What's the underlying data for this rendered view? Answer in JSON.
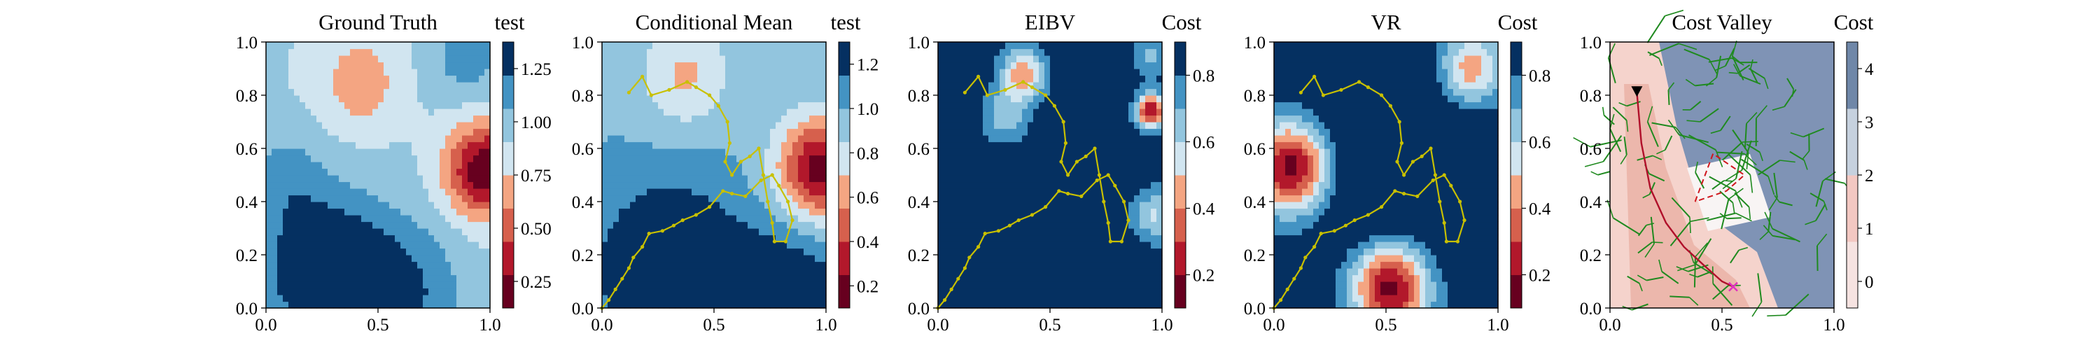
{
  "figure": {
    "panels": [
      {
        "title": "Ground Truth",
        "cbar_label": "test",
        "cbar_ticks": [
          "0.25",
          "0.50",
          "0.75",
          "1.00",
          "1.25"
        ],
        "cbar_levels": 8
      },
      {
        "title": "Conditional Mean",
        "cbar_label": "test",
        "cbar_ticks": [
          "0.2",
          "0.4",
          "0.6",
          "0.8",
          "1.0",
          "1.2"
        ],
        "cbar_levels": 8
      },
      {
        "title": "EIBV",
        "cbar_label": "Cost",
        "cbar_ticks": [
          "0.2",
          "0.4",
          "0.6",
          "0.8"
        ],
        "cbar_levels": 8
      },
      {
        "title": "VR",
        "cbar_label": "Cost",
        "cbar_ticks": [
          "0.2",
          "0.4",
          "0.6",
          "0.8"
        ],
        "cbar_levels": 8
      },
      {
        "title": "Cost Valley",
        "cbar_label": "Cost",
        "cbar_ticks": [
          "0",
          "1",
          "2",
          "3",
          "4"
        ],
        "cbar_levels": 4
      }
    ],
    "x_ticks": [
      "0.0",
      "0.5",
      "1.0"
    ],
    "y_ticks": [
      "0.0",
      "0.2",
      "0.4",
      "0.6",
      "0.8",
      "1.0"
    ]
  },
  "chart_data": [
    {
      "type": "heatmap",
      "title": "Ground Truth",
      "colorbar_label": "test",
      "colormap": "RdBu",
      "xlim": [
        0,
        1
      ],
      "ylim": [
        0,
        1
      ],
      "clim": [
        0.1,
        1.45
      ],
      "field": {
        "base": 0.95,
        "bumps": [
          {
            "x": 0.98,
            "y": 0.52,
            "s": 0.12,
            "a": -0.85
          },
          {
            "x": 0.42,
            "y": 0.85,
            "s": 0.12,
            "a": -0.3
          },
          {
            "x": 0.25,
            "y": 0.15,
            "s": 0.2,
            "a": 0.55
          },
          {
            "x": 0.6,
            "y": 0.05,
            "s": 0.2,
            "a": 0.35
          },
          {
            "x": 0.08,
            "y": 0.5,
            "s": 0.12,
            "a": 0.2
          },
          {
            "x": 0.9,
            "y": 0.95,
            "s": 0.12,
            "a": 0.25
          }
        ]
      }
    },
    {
      "type": "heatmap",
      "title": "Conditional Mean",
      "colorbar_label": "test",
      "colormap": "RdBu",
      "xlim": [
        0,
        1
      ],
      "ylim": [
        0,
        1
      ],
      "clim": [
        0.1,
        1.25
      ],
      "field": {
        "base": 0.95,
        "bumps": [
          {
            "x": 0.98,
            "y": 0.52,
            "s": 0.14,
            "a": -0.8
          },
          {
            "x": 0.37,
            "y": 0.88,
            "s": 0.14,
            "a": -0.3
          },
          {
            "x": 0.3,
            "y": 0.15,
            "s": 0.22,
            "a": 0.4
          },
          {
            "x": 0.85,
            "y": 0.1,
            "s": 0.2,
            "a": 0.25
          }
        ]
      },
      "path": [
        [
          0.12,
          0.81
        ],
        [
          0.18,
          0.87
        ],
        [
          0.22,
          0.8
        ],
        [
          0.3,
          0.82
        ],
        [
          0.38,
          0.85
        ],
        [
          0.42,
          0.83
        ],
        [
          0.48,
          0.8
        ],
        [
          0.52,
          0.76
        ],
        [
          0.56,
          0.7
        ],
        [
          0.57,
          0.62
        ],
        [
          0.55,
          0.55
        ],
        [
          0.58,
          0.5
        ],
        [
          0.62,
          0.55
        ],
        [
          0.66,
          0.57
        ],
        [
          0.7,
          0.6
        ],
        [
          0.72,
          0.5
        ],
        [
          0.74,
          0.4
        ],
        [
          0.76,
          0.32
        ],
        [
          0.77,
          0.25
        ],
        [
          0.82,
          0.25
        ],
        [
          0.85,
          0.33
        ],
        [
          0.83,
          0.4
        ],
        [
          0.79,
          0.46
        ],
        [
          0.76,
          0.5
        ],
        [
          0.71,
          0.48
        ],
        [
          0.64,
          0.42
        ],
        [
          0.58,
          0.43
        ],
        [
          0.54,
          0.44
        ],
        [
          0.48,
          0.38
        ],
        [
          0.42,
          0.35
        ],
        [
          0.36,
          0.33
        ],
        [
          0.32,
          0.31
        ],
        [
          0.27,
          0.29
        ],
        [
          0.21,
          0.28
        ],
        [
          0.18,
          0.23
        ],
        [
          0.14,
          0.19
        ],
        [
          0.12,
          0.15
        ],
        [
          0.09,
          0.11
        ],
        [
          0.06,
          0.07
        ],
        [
          0.03,
          0.03
        ],
        [
          0.0,
          0.0
        ]
      ]
    },
    {
      "type": "heatmap",
      "title": "EIBV",
      "colorbar_label": "Cost",
      "colormap": "RdBu",
      "xlim": [
        0,
        1
      ],
      "ylim": [
        0,
        1
      ],
      "clim": [
        0.0,
        0.98
      ],
      "field": {
        "base": 0.95,
        "bumps": [
          {
            "x": 0.95,
            "y": 0.74,
            "s": 0.045,
            "a": -0.85
          },
          {
            "x": 0.38,
            "y": 0.88,
            "s": 0.07,
            "a": -0.55
          },
          {
            "x": 0.3,
            "y": 0.72,
            "s": 0.07,
            "a": -0.3
          },
          {
            "x": 0.97,
            "y": 0.35,
            "s": 0.07,
            "a": -0.35
          },
          {
            "x": 0.95,
            "y": 0.95,
            "s": 0.06,
            "a": -0.25
          }
        ]
      },
      "path": [
        [
          0.12,
          0.81
        ],
        [
          0.18,
          0.87
        ],
        [
          0.22,
          0.8
        ],
        [
          0.3,
          0.82
        ],
        [
          0.38,
          0.85
        ],
        [
          0.42,
          0.83
        ],
        [
          0.48,
          0.8
        ],
        [
          0.52,
          0.76
        ],
        [
          0.56,
          0.7
        ],
        [
          0.57,
          0.62
        ],
        [
          0.55,
          0.55
        ],
        [
          0.58,
          0.5
        ],
        [
          0.62,
          0.55
        ],
        [
          0.66,
          0.57
        ],
        [
          0.7,
          0.6
        ],
        [
          0.72,
          0.5
        ],
        [
          0.74,
          0.4
        ],
        [
          0.76,
          0.32
        ],
        [
          0.77,
          0.25
        ],
        [
          0.82,
          0.25
        ],
        [
          0.85,
          0.33
        ],
        [
          0.83,
          0.4
        ],
        [
          0.79,
          0.46
        ],
        [
          0.76,
          0.5
        ],
        [
          0.71,
          0.48
        ],
        [
          0.64,
          0.42
        ],
        [
          0.58,
          0.43
        ],
        [
          0.54,
          0.44
        ],
        [
          0.48,
          0.38
        ],
        [
          0.42,
          0.35
        ],
        [
          0.36,
          0.33
        ],
        [
          0.32,
          0.31
        ],
        [
          0.27,
          0.29
        ],
        [
          0.21,
          0.28
        ],
        [
          0.18,
          0.23
        ],
        [
          0.14,
          0.19
        ],
        [
          0.12,
          0.15
        ],
        [
          0.09,
          0.11
        ],
        [
          0.06,
          0.07
        ],
        [
          0.03,
          0.03
        ],
        [
          0.0,
          0.0
        ]
      ]
    },
    {
      "type": "heatmap",
      "title": "VR",
      "colorbar_label": "Cost",
      "colormap": "RdBu",
      "xlim": [
        0,
        1
      ],
      "ylim": [
        0,
        1
      ],
      "clim": [
        0.0,
        0.98
      ],
      "field": {
        "base": 0.92,
        "bumps": [
          {
            "x": 0.08,
            "y": 0.53,
            "s": 0.12,
            "a": -0.9
          },
          {
            "x": 0.52,
            "y": 0.08,
            "s": 0.12,
            "a": -0.9
          },
          {
            "x": 0.88,
            "y": 0.9,
            "s": 0.1,
            "a": -0.55
          },
          {
            "x": 0.55,
            "y": 0.55,
            "s": 0.28,
            "a": 0.25
          }
        ]
      },
      "path": [
        [
          0.12,
          0.81
        ],
        [
          0.18,
          0.87
        ],
        [
          0.22,
          0.8
        ],
        [
          0.3,
          0.82
        ],
        [
          0.38,
          0.85
        ],
        [
          0.42,
          0.83
        ],
        [
          0.48,
          0.8
        ],
        [
          0.52,
          0.76
        ],
        [
          0.56,
          0.7
        ],
        [
          0.57,
          0.62
        ],
        [
          0.55,
          0.55
        ],
        [
          0.58,
          0.5
        ],
        [
          0.62,
          0.55
        ],
        [
          0.66,
          0.57
        ],
        [
          0.7,
          0.6
        ],
        [
          0.72,
          0.5
        ],
        [
          0.74,
          0.4
        ],
        [
          0.76,
          0.32
        ],
        [
          0.77,
          0.25
        ],
        [
          0.82,
          0.25
        ],
        [
          0.85,
          0.33
        ],
        [
          0.83,
          0.4
        ],
        [
          0.79,
          0.46
        ],
        [
          0.76,
          0.5
        ],
        [
          0.71,
          0.48
        ],
        [
          0.64,
          0.42
        ],
        [
          0.58,
          0.43
        ],
        [
          0.54,
          0.44
        ],
        [
          0.48,
          0.38
        ],
        [
          0.42,
          0.35
        ],
        [
          0.36,
          0.33
        ],
        [
          0.32,
          0.31
        ],
        [
          0.27,
          0.29
        ],
        [
          0.21,
          0.28
        ],
        [
          0.18,
          0.23
        ],
        [
          0.14,
          0.19
        ],
        [
          0.12,
          0.15
        ],
        [
          0.09,
          0.11
        ],
        [
          0.06,
          0.07
        ],
        [
          0.03,
          0.03
        ],
        [
          0.0,
          0.0
        ]
      ]
    },
    {
      "type": "heatmap",
      "title": "Cost Valley",
      "colorbar_label": "Cost",
      "colormap": "Reds-to-Blues",
      "xlim": [
        0,
        1
      ],
      "ylim": [
        0,
        1
      ],
      "clim": [
        0,
        4
      ],
      "start": [
        0.12,
        0.81
      ],
      "goal": [
        0.55,
        0.08
      ],
      "route": [
        [
          0.12,
          0.81
        ],
        [
          0.14,
          0.62
        ],
        [
          0.18,
          0.45
        ],
        [
          0.25,
          0.32
        ],
        [
          0.33,
          0.23
        ],
        [
          0.42,
          0.16
        ],
        [
          0.5,
          0.1
        ],
        [
          0.55,
          0.08
        ]
      ],
      "polygon": [
        [
          0.38,
          0.4
        ],
        [
          0.46,
          0.58
        ],
        [
          0.6,
          0.5
        ],
        [
          0.52,
          0.44
        ],
        [
          0.38,
          0.4
        ]
      ]
    }
  ]
}
